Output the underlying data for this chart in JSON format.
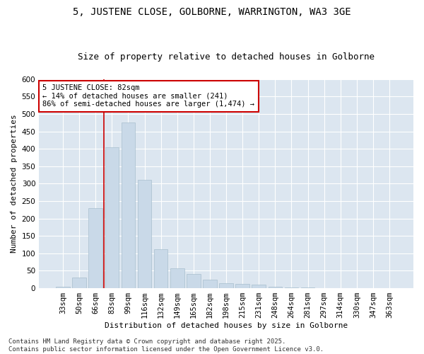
{
  "title": "5, JUSTENE CLOSE, GOLBORNE, WARRINGTON, WA3 3GE",
  "subtitle": "Size of property relative to detached houses in Golborne",
  "xlabel": "Distribution of detached houses by size in Golborne",
  "ylabel": "Number of detached properties",
  "categories": [
    "33sqm",
    "50sqm",
    "66sqm",
    "83sqm",
    "99sqm",
    "116sqm",
    "132sqm",
    "149sqm",
    "165sqm",
    "182sqm",
    "198sqm",
    "215sqm",
    "231sqm",
    "248sqm",
    "264sqm",
    "281sqm",
    "297sqm",
    "314sqm",
    "330sqm",
    "347sqm",
    "363sqm"
  ],
  "values": [
    5,
    30,
    230,
    405,
    475,
    312,
    112,
    57,
    40,
    25,
    15,
    13,
    10,
    5,
    3,
    2,
    1,
    1,
    0,
    0,
    0
  ],
  "bar_color": "#c9d9e8",
  "bar_edge_color": "#a8bfce",
  "vline_x_index": 3,
  "vline_color": "#cc0000",
  "annotation_text": "5 JUSTENE CLOSE: 82sqm\n← 14% of detached houses are smaller (241)\n86% of semi-detached houses are larger (1,474) →",
  "annotation_box_color": "white",
  "annotation_box_edge_color": "#cc0000",
  "ylim": [
    0,
    600
  ],
  "yticks": [
    0,
    50,
    100,
    150,
    200,
    250,
    300,
    350,
    400,
    450,
    500,
    550,
    600
  ],
  "plot_bg_color": "#dce6f0",
  "fig_bg_color": "#ffffff",
  "grid_color": "#ffffff",
  "footer_text": "Contains HM Land Registry data © Crown copyright and database right 2025.\nContains public sector information licensed under the Open Government Licence v3.0.",
  "title_fontsize": 10,
  "subtitle_fontsize": 9,
  "axis_label_fontsize": 8,
  "tick_fontsize": 7.5,
  "annotation_fontsize": 7.5,
  "footer_fontsize": 6.5
}
